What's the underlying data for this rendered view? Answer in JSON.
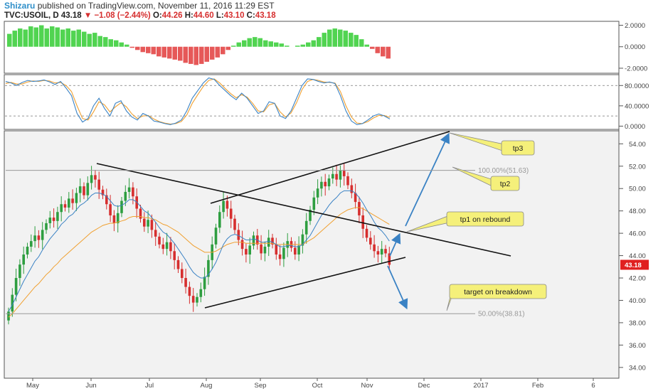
{
  "header": {
    "author": "Shizaru",
    "published_text": "published on TradingView.com, November 11, 2016 11:29 EST",
    "symbol": "TVC:USOIL, D",
    "last": "43.18",
    "change": "−1.08 (−2.44%)",
    "open_label": "O:",
    "open": "44.26",
    "high_label": "H:",
    "high": "44.60",
    "low_label": "L:",
    "low": "43.10",
    "close_label": "C:",
    "close": "43.18"
  },
  "colors": {
    "up_candle": "#2e9e40",
    "down_candle": "#d62e2e",
    "ema_fast": "#3a82c4",
    "ema_slow": "#f0a030",
    "hist_pos": "#33cc33",
    "hist_neg": "#e23b3b",
    "arrow": "#3a82c4",
    "callout_fill": "#f5f07a",
    "price_tag": "#e02020"
  },
  "chart_data": {
    "type": "candlestick",
    "panels": [
      {
        "name": "oscillator-histogram",
        "y_ticks": [
          "2.0000",
          "0.0000",
          "-2.0000"
        ],
        "ylim": [
          -2.4,
          2.3
        ],
        "values": [
          1.2,
          1.5,
          1.7,
          1.6,
          1.9,
          1.8,
          2.0,
          1.7,
          1.9,
          1.8,
          1.6,
          1.7,
          1.5,
          1.6,
          1.4,
          1.2,
          1.3,
          1.0,
          0.9,
          0.7,
          0.6,
          0.4,
          0.2,
          -0.1,
          -0.3,
          -0.5,
          -0.6,
          -0.7,
          -0.9,
          -1.0,
          -1.1,
          -1.2,
          -1.3,
          -1.5,
          -1.6,
          -1.7,
          -1.6,
          -1.4,
          -1.2,
          -1.0,
          -0.7,
          -0.3,
          0.1,
          0.4,
          0.6,
          0.8,
          0.9,
          0.8,
          0.6,
          0.5,
          0.4,
          0.3,
          0.1,
          0.0,
          0.1,
          0.2,
          0.4,
          0.6,
          0.9,
          1.3,
          1.6,
          1.7,
          1.6,
          1.5,
          1.3,
          1.1,
          0.7,
          0.2,
          -0.2,
          -0.6,
          -0.9,
          -1.1
        ]
      },
      {
        "name": "stochastic",
        "y_ticks": [
          "80.0000",
          "40.0000",
          "0.0000"
        ],
        "ylim": [
          -5,
          100
        ],
        "levels": [
          80,
          20
        ],
        "k": [
          88,
          85,
          80,
          86,
          90,
          88,
          89,
          91,
          87,
          82,
          88,
          75,
          60,
          25,
          8,
          15,
          40,
          55,
          35,
          20,
          45,
          50,
          30,
          18,
          12,
          25,
          20,
          10,
          8,
          5,
          3,
          6,
          12,
          30,
          55,
          70,
          85,
          95,
          92,
          80,
          70,
          60,
          52,
          65,
          55,
          40,
          25,
          30,
          48,
          45,
          20,
          15,
          30,
          55,
          80,
          93,
          92,
          88,
          85,
          87,
          84,
          60,
          30,
          10,
          3,
          5,
          12,
          20,
          24,
          20,
          14
        ],
        "d": [
          84,
          86,
          83,
          83,
          87,
          89,
          88,
          90,
          89,
          85,
          86,
          80,
          68,
          40,
          15,
          12,
          28,
          48,
          42,
          28,
          38,
          46,
          38,
          24,
          15,
          20,
          21,
          14,
          9,
          6,
          4,
          5,
          9,
          22,
          45,
          62,
          78,
          90,
          93,
          85,
          74,
          64,
          56,
          62,
          57,
          45,
          30,
          28,
          42,
          45,
          28,
          18,
          26,
          46,
          72,
          88,
          92,
          90,
          87,
          86,
          85,
          68,
          40,
          18,
          6,
          5,
          9,
          16,
          21,
          21,
          17
        ]
      },
      {
        "name": "price",
        "y_ticks": [
          "54.00",
          "52.00",
          "50.00",
          "48.00",
          "46.00",
          "44.00",
          "42.00",
          "40.00",
          "38.00",
          "36.00",
          "34.00"
        ],
        "ylim": [
          33.1,
          55.1
        ],
        "x_ticks": [
          "May",
          "Jun",
          "Jul",
          "Aug",
          "Sep",
          "Oct",
          "Nov",
          "Dec",
          "2017",
          "Feb",
          "6"
        ],
        "last_price_tag": "43.18",
        "closes": [
          39.0,
          40.5,
          42.0,
          43.2,
          44.1,
          44.8,
          45.3,
          45.8,
          45.4,
          46.3,
          46.9,
          47.4,
          47.1,
          47.9,
          48.6,
          48.3,
          49.1,
          48.7,
          49.6,
          50.2,
          49.4,
          50.5,
          51.2,
          50.8,
          49.9,
          49.4,
          48.6,
          47.6,
          46.9,
          47.8,
          48.9,
          49.7,
          50.1,
          49.3,
          48.2,
          47.3,
          46.6,
          47.2,
          46.3,
          45.7,
          45.0,
          44.6,
          45.2,
          44.4,
          43.6,
          42.8,
          42.0,
          41.2,
          40.4,
          39.8,
          40.3,
          41.0,
          42.1,
          43.6,
          45.0,
          46.5,
          47.9,
          48.9,
          48.2,
          47.3,
          46.3,
          45.4,
          44.6,
          44.1,
          44.9,
          45.8,
          45.0,
          44.2,
          44.8,
          45.6,
          45.0,
          44.1,
          43.7,
          44.7,
          45.3,
          44.7,
          44.1,
          44.9,
          45.9,
          47.1,
          48.1,
          49.2,
          50.0,
          50.6,
          50.2,
          50.9,
          51.3,
          50.8,
          51.6,
          51.1,
          50.3,
          49.6,
          48.8,
          47.6,
          46.4,
          45.6,
          45.0,
          44.4,
          44.1,
          44.6,
          44.2,
          43.18
        ],
        "ema_fast": [
          39.0,
          39.6,
          40.3,
          41.0,
          41.7,
          42.3,
          42.9,
          43.5,
          43.9,
          44.5,
          45.0,
          45.5,
          45.9,
          46.3,
          46.8,
          47.1,
          47.5,
          47.7,
          48.1,
          48.5,
          48.7,
          49.0,
          49.4,
          49.6,
          49.6,
          49.5,
          49.3,
          48.9,
          48.5,
          48.4,
          48.5,
          48.7,
          49.0,
          49.0,
          48.8,
          48.4,
          48.0,
          47.8,
          47.4,
          47.0,
          46.5,
          46.1,
          45.9,
          45.5,
          45.1,
          44.6,
          44.1,
          43.6,
          43.0,
          42.5,
          42.2,
          42.0,
          42.0,
          42.3,
          42.8,
          43.4,
          44.2,
          45.0,
          45.5,
          45.8,
          45.9,
          45.8,
          45.6,
          45.4,
          45.4,
          45.5,
          45.4,
          45.2,
          45.2,
          45.3,
          45.2,
          45.0,
          44.8,
          44.8,
          44.9,
          44.9,
          44.8,
          44.8,
          45.0,
          45.4,
          45.8,
          46.4,
          47.0,
          47.6,
          48.0,
          48.5,
          48.9,
          49.2,
          49.6,
          49.8,
          49.8,
          49.8,
          49.6,
          49.2,
          48.7,
          48.1,
          47.6,
          47.0,
          46.5,
          46.2,
          45.8,
          45.3
        ],
        "ema_slow": [
          38.5,
          38.8,
          39.2,
          39.6,
          40.0,
          40.4,
          40.8,
          41.2,
          41.5,
          41.9,
          42.3,
          42.6,
          43.0,
          43.3,
          43.7,
          44.0,
          44.3,
          44.6,
          44.9,
          45.2,
          45.5,
          45.8,
          46.1,
          46.3,
          46.5,
          46.7,
          46.8,
          46.9,
          46.9,
          47.0,
          47.1,
          47.2,
          47.4,
          47.5,
          47.5,
          47.5,
          47.4,
          47.4,
          47.3,
          47.2,
          47.0,
          46.8,
          46.7,
          46.5,
          46.3,
          46.1,
          45.8,
          45.5,
          45.2,
          44.9,
          44.7,
          44.5,
          44.3,
          44.3,
          44.3,
          44.4,
          44.6,
          44.8,
          45.0,
          45.1,
          45.2,
          45.2,
          45.2,
          45.1,
          45.1,
          45.1,
          45.1,
          45.1,
          45.1,
          45.1,
          45.1,
          45.0,
          45.0,
          45.0,
          45.0,
          45.0,
          45.0,
          45.0,
          45.0,
          45.2,
          45.4,
          45.6,
          45.9,
          46.2,
          46.5,
          46.8,
          47.1,
          47.4,
          47.7,
          47.9,
          48.1,
          48.2,
          48.3,
          48.3,
          48.2,
          48.0,
          47.8,
          47.6,
          47.4,
          47.2,
          47.0,
          46.8
        ]
      }
    ],
    "levels": [
      {
        "label": "100.00%(51.63)",
        "value": 51.63
      },
      {
        "label": "50.00%(38.81)",
        "value": 38.81
      }
    ],
    "callouts": [
      {
        "label": "tp3",
        "value": 54.6
      },
      {
        "label": "tp2",
        "value": 51.63
      },
      {
        "label": "tp1 on rebound",
        "value": 45.9
      },
      {
        "label": "target on breakdown",
        "value": 38.81
      }
    ]
  }
}
